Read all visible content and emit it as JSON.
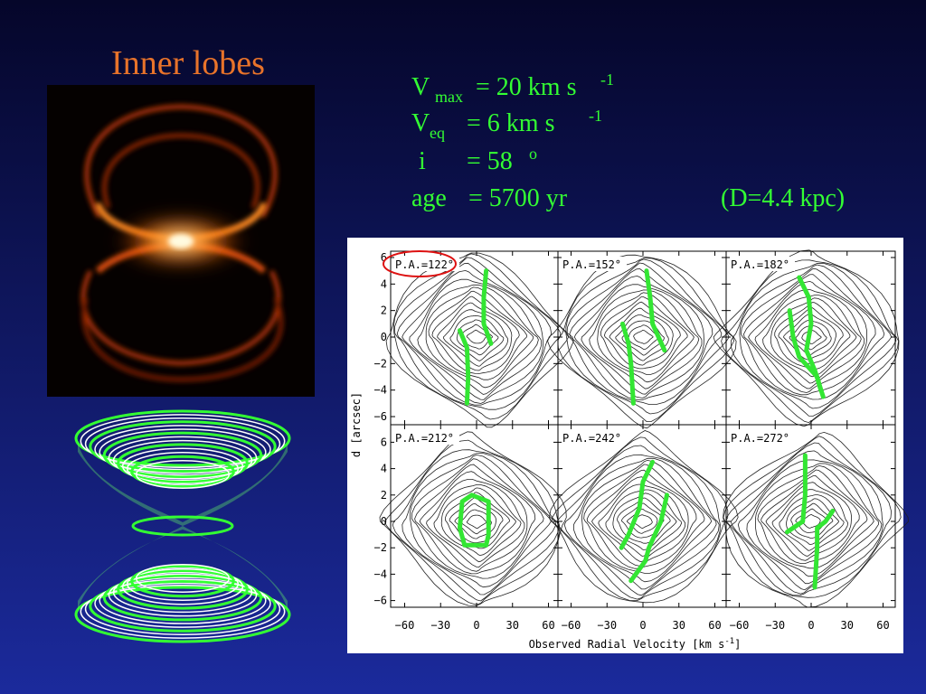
{
  "title": "Inner lobes",
  "parameters": [
    {
      "symbol": "V",
      "subscript": "max",
      "text": "= 20 km s",
      "superscript": "-1"
    },
    {
      "symbol": "V",
      "subscript": "eq",
      "text": "=  6 km s",
      "superscript": "-1"
    },
    {
      "symbol": "i",
      "text": "=  58",
      "superscript": "o"
    },
    {
      "symbol": "age",
      "text": "=  5700 yr"
    }
  ],
  "distance": "(D=4.4 kpc)",
  "figure": {
    "panels": [
      "P.A.=122°",
      "P.A.=152°",
      "P.A.=182°",
      "P.A.=212°",
      "P.A.=242°",
      "P.A.=272°"
    ],
    "y_ticks": [
      "6",
      "4",
      "2",
      "0",
      "−2",
      "−4",
      "−6"
    ],
    "x_ticks": [
      "−60",
      "−30",
      "0",
      "30",
      "60"
    ],
    "y_label": "d [arcsec]",
    "x_label": "Observed Radial Velocity [km s",
    "x_label_sup": "-1",
    "x_label_end": "]"
  }
}
